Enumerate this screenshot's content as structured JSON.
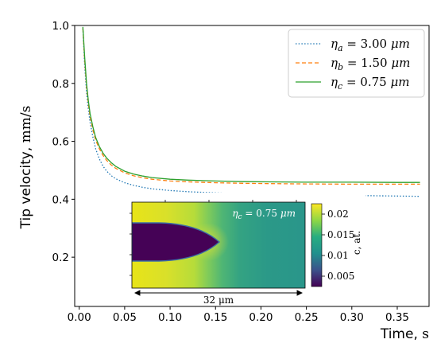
{
  "chart_data": {
    "type": "line",
    "xlabel": {
      "main": "Time,",
      "unit": "s"
    },
    "ylabel": {
      "main": "Tip velocity,",
      "unit": "mm/s"
    },
    "xlim": [
      -0.005,
      0.385
    ],
    "ylim": [
      0.03,
      1.0
    ],
    "xticks": [
      0.0,
      0.05,
      0.1,
      0.15,
      0.2,
      0.25,
      0.3,
      0.35
    ],
    "xtick_labels": [
      "0.00",
      "0.05",
      "0.10",
      "0.15",
      "0.20",
      "0.25",
      "0.30",
      "0.35"
    ],
    "yticks": [
      0.2,
      0.4,
      0.6,
      0.8,
      1.0
    ],
    "ytick_labels": [
      "0.2",
      "0.4",
      "0.6",
      "0.8",
      "1.0"
    ],
    "legend_position": "top-right",
    "series": [
      {
        "sym": "η",
        "sub": "a",
        "eq": " = 3.00 ",
        "unit": "μm",
        "style": "dotted",
        "color": "#1f77b4",
        "x": [
          0.004,
          0.006,
          0.008,
          0.01,
          0.012,
          0.015,
          0.018,
          0.022,
          0.026,
          0.03,
          0.035,
          0.04,
          0.05,
          0.06,
          0.07,
          0.08,
          0.1,
          0.12,
          0.15,
          0.18,
          0.21,
          0.25,
          0.3,
          0.35,
          0.375
        ],
        "y": [
          0.99,
          0.86,
          0.77,
          0.71,
          0.665,
          0.615,
          0.575,
          0.54,
          0.515,
          0.498,
          0.482,
          0.471,
          0.457,
          0.448,
          0.441,
          0.436,
          0.43,
          0.426,
          0.422,
          0.419,
          0.417,
          0.415,
          0.413,
          0.411,
          0.41
        ]
      },
      {
        "sym": "η",
        "sub": "b",
        "eq": " = 1.50 ",
        "unit": "μm",
        "style": "dashed",
        "color": "#ff7f0e",
        "x": [
          0.004,
          0.006,
          0.008,
          0.01,
          0.012,
          0.015,
          0.018,
          0.022,
          0.026,
          0.03,
          0.035,
          0.04,
          0.05,
          0.06,
          0.07,
          0.08,
          0.1,
          0.12,
          0.15,
          0.18,
          0.21,
          0.25,
          0.3,
          0.35,
          0.375
        ],
        "y": [
          0.99,
          0.88,
          0.79,
          0.73,
          0.685,
          0.64,
          0.605,
          0.575,
          0.552,
          0.535,
          0.519,
          0.507,
          0.491,
          0.481,
          0.474,
          0.469,
          0.463,
          0.46,
          0.457,
          0.455,
          0.454,
          0.453,
          0.452,
          0.452,
          0.452
        ]
      },
      {
        "sym": "η",
        "sub": "c",
        "eq": " = 0.75 ",
        "unit": "μm",
        "style": "solid",
        "color": "#2ca02c",
        "x": [
          0.004,
          0.006,
          0.008,
          0.01,
          0.012,
          0.015,
          0.018,
          0.022,
          0.026,
          0.03,
          0.035,
          0.04,
          0.05,
          0.06,
          0.07,
          0.08,
          0.1,
          0.12,
          0.15,
          0.18,
          0.21,
          0.25,
          0.3,
          0.35,
          0.375
        ],
        "y": [
          0.995,
          0.89,
          0.8,
          0.74,
          0.695,
          0.65,
          0.614,
          0.583,
          0.56,
          0.543,
          0.527,
          0.514,
          0.497,
          0.487,
          0.48,
          0.475,
          0.469,
          0.466,
          0.463,
          0.461,
          0.46,
          0.459,
          0.459,
          0.458,
          0.458
        ]
      }
    ],
    "inset": {
      "label": {
        "sym": "η",
        "sub": "c",
        "eq": " = 0.75 ",
        "unit": "μm"
      },
      "scale_bar": "32 μm",
      "colorbar": {
        "label": "c, at.",
        "ticks": [
          0.005,
          0.01,
          0.015,
          0.02
        ],
        "tick_labels": [
          "0.005",
          "0.01",
          "0.015",
          "0.02"
        ],
        "range": [
          0.0025,
          0.0225
        ],
        "colormap": "viridis"
      }
    }
  }
}
